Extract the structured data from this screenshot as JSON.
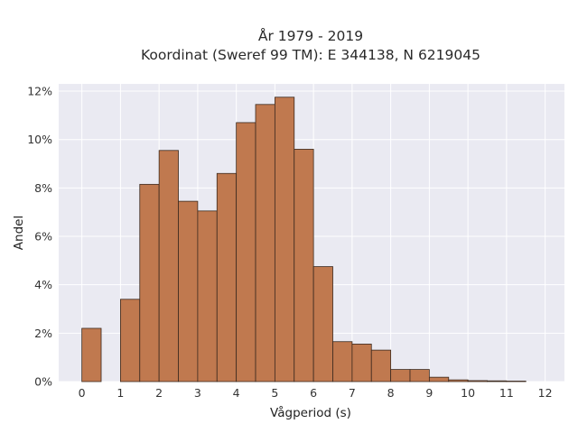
{
  "chart_data": {
    "type": "bar",
    "title": "År 1979 - 2019",
    "subtitle": "Koordinat (Sweref 99 TM): E 344138, N 6219045",
    "xlabel": "Vågperiod (s)",
    "ylabel": "Andel",
    "xlim": [
      -0.6,
      12.5
    ],
    "ylim": [
      0,
      12.3
    ],
    "xticks": [
      0,
      1,
      2,
      3,
      4,
      5,
      6,
      7,
      8,
      9,
      10,
      11,
      12
    ],
    "yticks": [
      0,
      2,
      4,
      6,
      8,
      10,
      12
    ],
    "ytick_suffix": "%",
    "grid": true,
    "bar_width": 0.5,
    "colors": {
      "bar": "#c0794f",
      "bar_edge": "#3c2a1f",
      "plot_bg": "#eaeaf2",
      "grid": "#ffffff"
    },
    "bins": [
      {
        "x0": 0.0,
        "value": 2.2
      },
      {
        "x0": 1.0,
        "value": 3.4
      },
      {
        "x0": 1.5,
        "value": 8.15
      },
      {
        "x0": 2.0,
        "value": 9.55
      },
      {
        "x0": 2.5,
        "value": 7.45
      },
      {
        "x0": 3.0,
        "value": 7.05
      },
      {
        "x0": 3.5,
        "value": 8.6
      },
      {
        "x0": 4.0,
        "value": 10.7
      },
      {
        "x0": 4.5,
        "value": 11.45
      },
      {
        "x0": 5.0,
        "value": 11.75
      },
      {
        "x0": 5.5,
        "value": 9.6
      },
      {
        "x0": 6.0,
        "value": 4.75
      },
      {
        "x0": 6.5,
        "value": 1.65
      },
      {
        "x0": 7.0,
        "value": 1.55
      },
      {
        "x0": 7.5,
        "value": 1.3
      },
      {
        "x0": 8.0,
        "value": 0.5
      },
      {
        "x0": 8.5,
        "value": 0.5
      },
      {
        "x0": 9.0,
        "value": 0.18
      },
      {
        "x0": 9.5,
        "value": 0.07
      },
      {
        "x0": 10.0,
        "value": 0.04
      },
      {
        "x0": 10.5,
        "value": 0.03
      },
      {
        "x0": 11.0,
        "value": 0.02
      }
    ]
  }
}
